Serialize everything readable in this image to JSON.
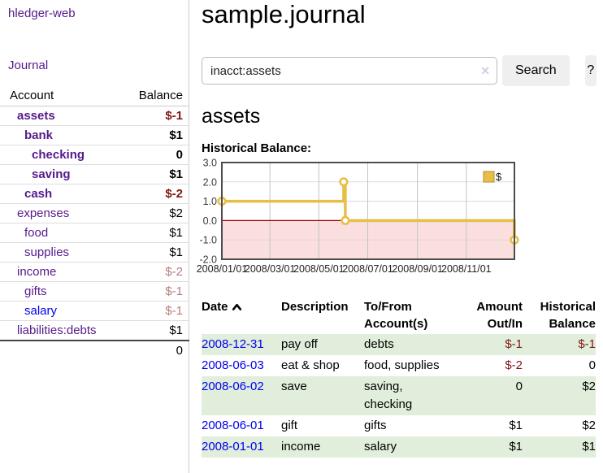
{
  "colors": {
    "purple_link": "#551a8b",
    "blue_link": "#0000ee",
    "negative_strong": "#801515",
    "negative_muted": "#b97c7c",
    "row_stripe_green": "#e1eedb",
    "button_bg": "#efefef",
    "chart_line_gold": "#e7bf47"
  },
  "sidebar": {
    "brand": "hledger-web",
    "nav": {
      "journal": "Journal"
    },
    "table": {
      "account_header": "Account",
      "balance_header": "Balance"
    },
    "accounts": [
      {
        "name": "assets",
        "balance": "$-1"
      },
      {
        "name": "bank",
        "balance": "$1"
      },
      {
        "name": "checking",
        "balance": "0"
      },
      {
        "name": "saving",
        "balance": "$1"
      },
      {
        "name": "cash",
        "balance": "$-2"
      },
      {
        "name": "expenses",
        "balance": "$2"
      },
      {
        "name": "food",
        "balance": "$1"
      },
      {
        "name": "supplies",
        "balance": "$1"
      },
      {
        "name": "income",
        "balance": "$-2"
      },
      {
        "name": "gifts",
        "balance": "$-1"
      },
      {
        "name": "salary",
        "balance": "$-1"
      },
      {
        "name": "liabilities:debts",
        "balance": "$1"
      }
    ],
    "total": "0"
  },
  "main": {
    "title": "sample.journal",
    "search": {
      "value": "inacct:assets",
      "clear_icon": "✕",
      "search_button": "Search",
      "help_button": "?"
    },
    "account_heading": "assets",
    "chart_label": "Historical Balance:"
  },
  "chart_data": {
    "type": "line",
    "title": "Historical Balance",
    "step": true,
    "xlim": [
      0,
      365
    ],
    "ylim": [
      -2,
      3
    ],
    "grid": true,
    "legend": "$",
    "legend_position": "top-right",
    "yticks": [
      {
        "value": 3,
        "label": "3.0"
      },
      {
        "value": 2,
        "label": "2.0"
      },
      {
        "value": 1,
        "label": "1.0"
      },
      {
        "value": 0,
        "label": "0.0"
      },
      {
        "value": -1,
        "label": "-1.0"
      },
      {
        "value": -2,
        "label": "-2.0"
      }
    ],
    "xticks": [
      {
        "day": 0,
        "label": "2008/01/01"
      },
      {
        "day": 60,
        "label": "2008/03/01"
      },
      {
        "day": 121,
        "label": "2008/05/01"
      },
      {
        "day": 182,
        "label": "2008/07/01"
      },
      {
        "day": 244,
        "label": "2008/09/01"
      },
      {
        "day": 305,
        "label": "2008/11/01"
      }
    ],
    "series": [
      {
        "name": "$",
        "points": [
          {
            "date": "2008-01-01",
            "day": 0,
            "value": 1
          },
          {
            "date": "2008-06-01",
            "day": 152,
            "value": 2
          },
          {
            "date": "2008-06-03",
            "day": 154,
            "value": 0
          },
          {
            "date": "2008-12-31",
            "day": 365,
            "value": -1
          }
        ]
      }
    ],
    "colors": {
      "line": "#e7bf47",
      "negative_region": "#fbdede",
      "zero_line": "#990000"
    }
  },
  "register": {
    "headers": {
      "date": "Date",
      "description": "Description",
      "tofrom_line1": "To/From",
      "tofrom_line2": "Account(s)",
      "amount_line1": "Amount",
      "amount_line2": "Out/In",
      "balance_line1": "Historical",
      "balance_line2": "Balance"
    },
    "rows": [
      {
        "date": "2008-12-31",
        "description": "pay off",
        "tofrom": "debts",
        "amount": "$-1",
        "balance": "$-1"
      },
      {
        "date": "2008-06-03",
        "description": "eat & shop",
        "tofrom": "food, supplies",
        "amount": "$-2",
        "balance": "0"
      },
      {
        "date": "2008-06-02",
        "description": "save",
        "tofrom": "saving, checking",
        "amount": "0",
        "balance": "$2"
      },
      {
        "date": "2008-06-01",
        "description": "gift",
        "tofrom": "gifts",
        "amount": "$1",
        "balance": "$2"
      },
      {
        "date": "2008-01-01",
        "description": "income",
        "tofrom": "salary",
        "amount": "$1",
        "balance": "$1"
      }
    ]
  }
}
